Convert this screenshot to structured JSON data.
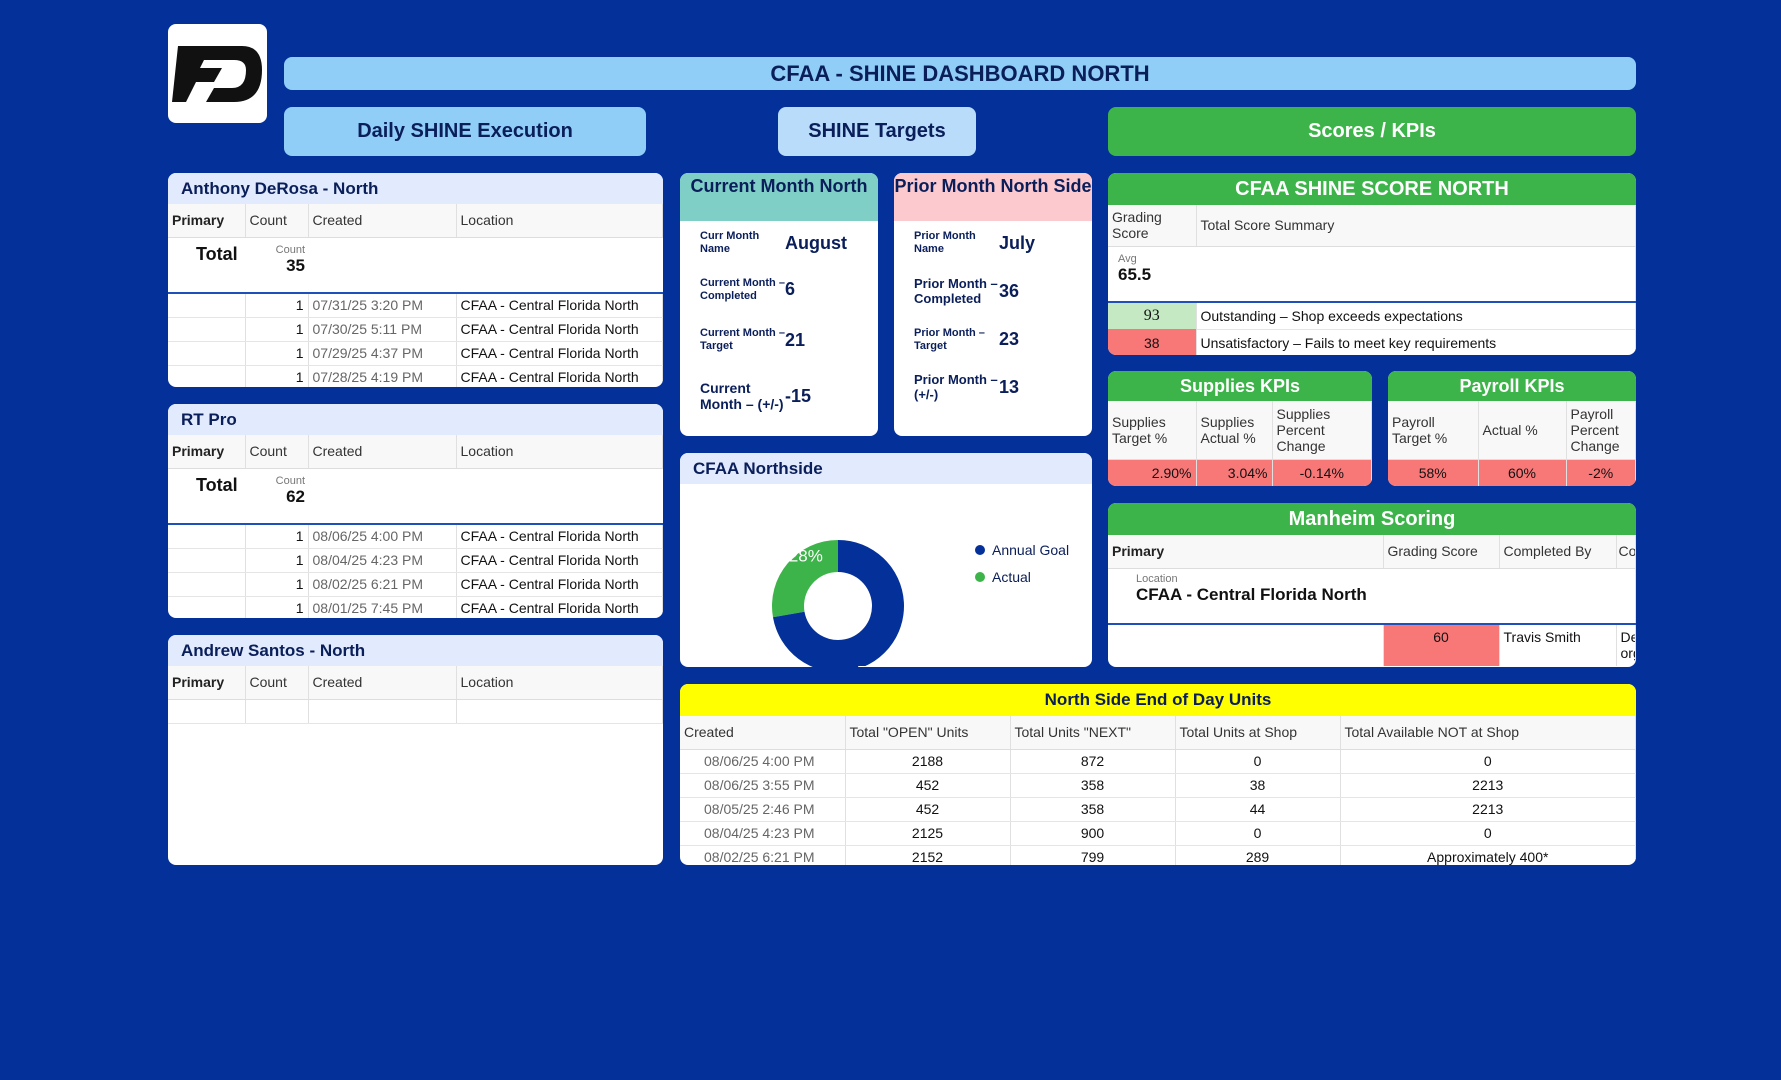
{
  "page_title": "CFAA - SHINE DASHBOARD NORTH",
  "buttons": {
    "daily": "Daily SHINE Execution",
    "targets": "SHINE Targets",
    "scores": "Scores / KPIs"
  },
  "cards": [
    {
      "title": "Anthony DeRosa - North",
      "headers": [
        "Primary",
        "Count",
        "Created",
        "Location"
      ],
      "total_label": "Total",
      "count_label": "Count",
      "count": "35",
      "rows": [
        [
          "",
          "1",
          "07/31/25 3:20 PM",
          "CFAA - Central Florida North"
        ],
        [
          "",
          "1",
          "07/30/25 5:11 PM",
          "CFAA - Central Florida North"
        ],
        [
          "",
          "1",
          "07/29/25 4:37 PM",
          "CFAA - Central Florida North"
        ],
        [
          "",
          "1",
          "07/28/25 4:19 PM",
          "CFAA - Central Florida North"
        ]
      ]
    },
    {
      "title": "RT Pro",
      "headers": [
        "Primary",
        "Count",
        "Created",
        "Location"
      ],
      "total_label": "Total",
      "count_label": "Count",
      "count": "62",
      "rows": [
        [
          "",
          "1",
          "08/06/25 4:00 PM",
          "CFAA - Central Florida North"
        ],
        [
          "",
          "1",
          "08/04/25 4:23 PM",
          "CFAA - Central Florida North"
        ],
        [
          "",
          "1",
          "08/02/25 6:21 PM",
          "CFAA - Central Florida North"
        ],
        [
          "",
          "1",
          "08/01/25 7:45 PM",
          "CFAA - Central Florida North"
        ]
      ]
    },
    {
      "title": "Andrew Santos - North",
      "headers": [
        "Primary",
        "Count",
        "Created",
        "Location"
      ]
    }
  ],
  "current_month": {
    "title": "Current Month North",
    "rows": [
      {
        "label": "Curr Month Name",
        "value": "August"
      },
      {
        "label": "Current Month – Completed",
        "value": "6"
      },
      {
        "label": "Current Month – Target",
        "value": "21"
      },
      {
        "label": "Current Month – (+/-)",
        "value": "-15"
      }
    ]
  },
  "prior_month": {
    "title": "Prior Month North Side",
    "rows": [
      {
        "label": "Prior Month Name",
        "value": "July"
      },
      {
        "label": "Prior Month – Completed",
        "value": "36"
      },
      {
        "label": "Prior Month – Target",
        "value": "23"
      },
      {
        "label": "Prior Month – (+/-)",
        "value": "13"
      }
    ]
  },
  "northside": {
    "title": "CFAA Northside",
    "legend": [
      "Annual Goal",
      "Actual"
    ]
  },
  "chart_data": {
    "type": "pie",
    "title": "CFAA Northside",
    "categories": [
      "Annual Goal",
      "Actual"
    ],
    "values": [
      73,
      28
    ],
    "labels": [
      "73%",
      "28%"
    ],
    "colors": [
      "#04309a",
      "#3db449"
    ],
    "legend_position": "top-right"
  },
  "shine_score": {
    "title": "CFAA SHINE SCORE NORTH",
    "headers": [
      "Grading Score",
      "Total Score Summary"
    ],
    "avg_label": "Avg",
    "avg": "65.5",
    "rows": [
      {
        "score": "93",
        "text": "Outstanding – Shop exceeds expectations",
        "color": "#c5eac3"
      },
      {
        "score": "38",
        "text": "Unsatisfactory – Fails to meet key requirements",
        "color": "#f87878"
      }
    ]
  },
  "supplies": {
    "title": "Supplies KPIs",
    "headers": [
      "Supplies Target %",
      "Supplies Actual %",
      "Supplies Percent Change"
    ],
    "values": [
      "2.90%",
      "3.04%",
      "-0.14%"
    ]
  },
  "payroll": {
    "title": "Payroll KPIs",
    "headers": [
      "Payroll Target %",
      "Actual %",
      "Payroll Percent Change"
    ],
    "values": [
      "58%",
      "60%",
      "-2%"
    ]
  },
  "manheim": {
    "title": "Manheim Scoring",
    "headers": [
      "Primary",
      "Grading Score",
      "Completed By",
      "Co"
    ],
    "location_label": "Location",
    "location": "CFAA - Central Florida North",
    "row": {
      "score": "60",
      "completed_by": "Travis Smith",
      "comment": "De org"
    }
  },
  "eod": {
    "title": "North Side End of Day Units",
    "headers": [
      "Created",
      "Total \"OPEN\" Units",
      "Total Units \"NEXT\"",
      "Total Units at Shop",
      "Total Available NOT at Shop"
    ],
    "rows": [
      [
        "08/06/25 4:00 PM",
        "2188",
        "872",
        "0",
        "0"
      ],
      [
        "08/06/25 3:55 PM",
        "452",
        "358",
        "38",
        "2213"
      ],
      [
        "08/05/25 2:46 PM",
        "452",
        "358",
        "44",
        "2213"
      ],
      [
        "08/04/25 4:23 PM",
        "2125",
        "900",
        "0",
        "0"
      ],
      [
        "08/02/25 6:21 PM",
        "2152",
        "799",
        "289",
        "Approximately 400*"
      ]
    ]
  }
}
